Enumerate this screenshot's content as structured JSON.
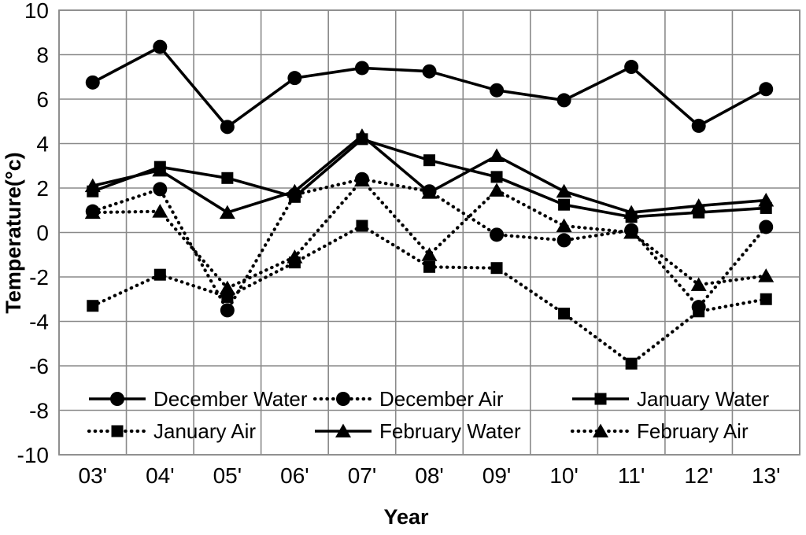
{
  "chart_data": {
    "type": "line",
    "title": "",
    "xlabel": "Year",
    "ylabel": "Temperature(°c)",
    "categories": [
      "03'",
      "04'",
      "05'",
      "06'",
      "07'",
      "08'",
      "09'",
      "10'",
      "11'",
      "12'",
      "13'"
    ],
    "ylim": [
      -10,
      10
    ],
    "yticks": [
      10,
      8,
      6,
      4,
      2,
      0,
      -2,
      -4,
      -6,
      -8,
      -10
    ],
    "grid": true,
    "legend_position": "inside-bottom",
    "legend_rows": [
      [
        0,
        1,
        2
      ],
      [
        3,
        4,
        5
      ]
    ],
    "series": [
      {
        "name": "December Water",
        "marker": "circle",
        "line": "solid",
        "values": [
          6.75,
          8.35,
          4.75,
          6.95,
          7.4,
          7.25,
          6.4,
          5.95,
          7.45,
          4.8,
          6.45
        ]
      },
      {
        "name": "December Air",
        "marker": "circle",
        "line": "dotted",
        "values": [
          0.95,
          1.95,
          -3.5,
          1.7,
          2.4,
          1.85,
          -0.1,
          -0.35,
          0.1,
          -3.35,
          0.25
        ]
      },
      {
        "name": "January Water",
        "marker": "square",
        "line": "solid",
        "values": [
          1.85,
          2.95,
          2.45,
          1.6,
          4.2,
          3.25,
          2.5,
          1.25,
          0.7,
          0.9,
          1.1
        ]
      },
      {
        "name": "January Air",
        "marker": "square",
        "line": "dotted",
        "values": [
          -3.3,
          -1.9,
          -2.9,
          -1.35,
          0.3,
          -1.55,
          -1.6,
          -3.65,
          -5.9,
          -3.55,
          -3.0
        ]
      },
      {
        "name": "February Water",
        "marker": "triangle",
        "line": "solid",
        "values": [
          2.1,
          2.8,
          0.9,
          1.85,
          4.35,
          1.8,
          3.45,
          1.85,
          0.9,
          1.2,
          1.45
        ]
      },
      {
        "name": "February Air",
        "marker": "triangle",
        "line": "dotted",
        "values": [
          0.9,
          0.95,
          -2.5,
          -1.1,
          2.35,
          -1.0,
          1.9,
          0.3,
          0.0,
          -2.35,
          -1.95
        ]
      }
    ],
    "colors": {
      "series": "#000000",
      "grid": "#8a8a8a",
      "text": "#000000"
    }
  }
}
